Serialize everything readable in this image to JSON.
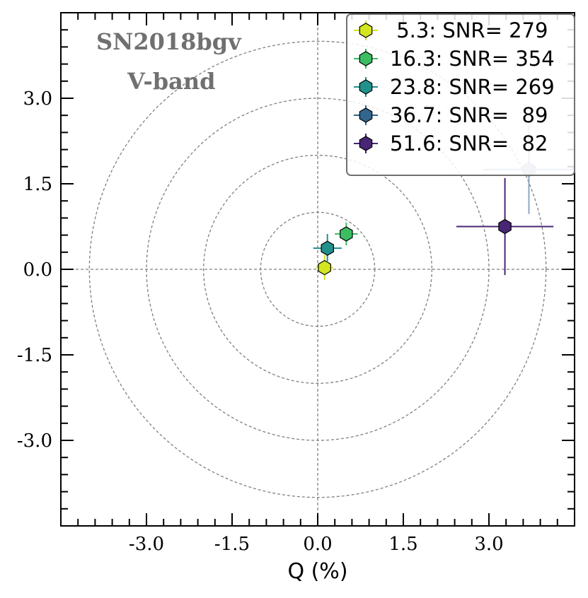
{
  "chart_data": {
    "type": "scatter",
    "title": "",
    "xlabel": "Q (%)",
    "ylabel": "",
    "xlim": [
      -4.5,
      4.5
    ],
    "ylim": [
      -4.5,
      4.5
    ],
    "xticks": [
      -3.0,
      -1.5,
      0.0,
      1.5,
      3.0
    ],
    "yticks": [
      -3.0,
      -1.5,
      0.0,
      1.5,
      3.0
    ],
    "xtick_labels": [
      "-3.0",
      "-1.5",
      "0.0",
      "1.5",
      "3.0"
    ],
    "ytick_labels": [
      "-3.0",
      "-1.5",
      "0.0",
      "1.5",
      "3.0"
    ],
    "grid": false,
    "reference_circles": [
      1.0,
      2.0,
      3.0,
      4.0
    ],
    "reference_lines": {
      "x": 0.0,
      "y": 0.0
    },
    "annotations": [
      "SN2018bgv",
      "V-band"
    ],
    "legend_position": "upper right",
    "series": [
      {
        "name": " 5.3: SNR= 279",
        "x": 0.12,
        "y": 0.03,
        "xerr": 0.15,
        "yerr": 0.22,
        "color": "#d4e61f"
      },
      {
        "name": "16.3: SNR= 354",
        "x": 0.5,
        "y": 0.62,
        "xerr": 0.2,
        "yerr": 0.2,
        "color": "#3cbd62"
      },
      {
        "name": "23.8: SNR= 269",
        "x": 0.17,
        "y": 0.37,
        "xerr": 0.25,
        "yerr": 0.25,
        "color": "#21918c"
      },
      {
        "name": "36.7: SNR=  89",
        "x": 3.7,
        "y": 1.75,
        "xerr": 0.8,
        "yerr": 0.78,
        "color": "#31668e"
      },
      {
        "name": "51.6: SNR=  82",
        "x": 3.28,
        "y": 0.75,
        "xerr": 0.85,
        "yerr": 0.85,
        "color": "#482575"
      }
    ]
  }
}
